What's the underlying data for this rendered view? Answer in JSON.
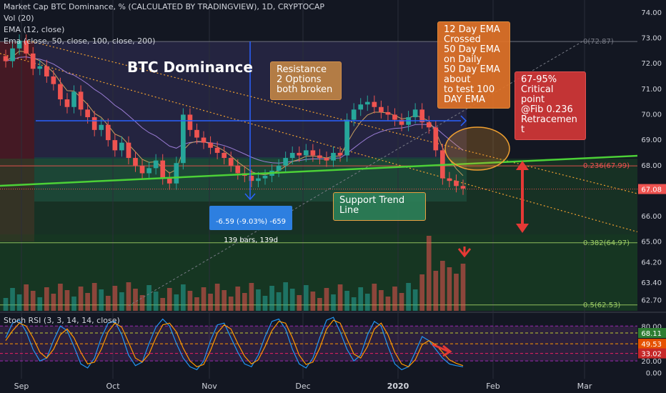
{
  "header": {
    "title": "Market Cap BTC Dominance, % (CALCULATED BY TRADINGVIEW), 1D, CRYPTOCAP",
    "vol": "Vol (20)",
    "ema12": "EMA (12, close)",
    "ema_multi": "Ema (close, 50, close, 100, close, 200)"
  },
  "colors": {
    "background": "#131722",
    "up": "#26a69a",
    "down": "#ef5350",
    "trend_green": "#4cd137",
    "ema_blue": "#2962ff",
    "rsi_k": "#2196f3",
    "rsi_d": "#ff9800"
  },
  "annotations": {
    "big_title": "BTC Dominance",
    "resistance_note": "Resistance\n2 Options\nboth broken",
    "ema_note": "12 Day EMA\nCrossed\n50 Day EMA\non Daily\n50 Day EMA\nabout\n to test 100\nDAY EMA",
    "critical_note": "67-95%\nCritical\npoint\n@Fib 0.236\nRetracemen\nt",
    "support_note": "Support Trend\nLine",
    "measure_line1": "-6.59 (-9.03%) -659",
    "measure_line2": "139 bars, 139d"
  },
  "chart_data": [
    {
      "type": "candlestick",
      "title": "Market Cap BTC Dominance, % (CALCULATED BY TRADINGVIEW), 1D, CRYPTOCAP",
      "x_ticks": [
        "Sep",
        "Oct",
        "Nov",
        "Dec",
        "2020",
        "Feb",
        "Mar"
      ],
      "y_ticks": [
        "74.00",
        "73.00",
        "72.00",
        "71.00",
        "70.00",
        "69.00",
        "68.00",
        "67.00",
        "66.00",
        "65.00",
        "64.20",
        "63.40",
        "62.70"
      ],
      "ylim": [
        62.3,
        74.5
      ],
      "last_price": "67.08",
      "fib_levels": [
        {
          "label": "0(72.87)",
          "value": 72.87
        },
        {
          "label": "0.236(67.99)",
          "value": 67.99
        },
        {
          "label": "0.382(64.97)",
          "value": 64.97
        },
        {
          "label": "0.5(62.53)",
          "value": 62.53
        }
      ],
      "close_series": [
        72.1,
        72.6,
        72.9,
        72.4,
        71.8,
        71.9,
        71.5,
        71.2,
        70.6,
        70.3,
        70.9,
        70.2,
        69.9,
        69.4,
        69.6,
        69.0,
        68.6,
        68.9,
        68.3,
        68.0,
        67.7,
        67.9,
        68.2,
        67.5,
        67.3,
        68.1,
        70.0,
        69.4,
        69.1,
        68.9,
        68.7,
        68.5,
        68.3,
        68.0,
        67.7,
        67.6,
        67.4,
        67.5,
        67.6,
        67.8,
        68.0,
        68.3,
        68.5,
        68.4,
        68.6,
        68.4,
        68.3,
        68.2,
        68.5,
        68.4,
        69.8,
        70.2,
        70.4,
        70.5,
        70.3,
        70.1,
        70.0,
        69.8,
        69.6,
        69.9,
        70.2,
        69.7,
        69.5,
        68.6,
        67.5,
        67.4,
        67.2,
        67.1
      ]
    },
    {
      "type": "line",
      "title": "Stoch RSI (3, 3, 14, 14, close)",
      "y_ticks": [
        "80.00",
        "68.11",
        "49.53",
        "33.02",
        "20.00",
        "0.00"
      ],
      "ylim": [
        -8,
        100
      ],
      "series": [
        {
          "name": "%K",
          "values": [
            60,
            85,
            90,
            70,
            40,
            20,
            25,
            55,
            80,
            72,
            45,
            15,
            8,
            25,
            60,
            85,
            88,
            65,
            30,
            12,
            18,
            50,
            78,
            92,
            80,
            50,
            25,
            10,
            5,
            20,
            55,
            82,
            85,
            60,
            35,
            15,
            10,
            30,
            62,
            88,
            92,
            75,
            40,
            15,
            8,
            25,
            60,
            90,
            95,
            70,
            40,
            20,
            30,
            65,
            88,
            80,
            45,
            15,
            5,
            10,
            35,
            62,
            55,
            40,
            25,
            15,
            12,
            10
          ]
        },
        {
          "name": "%D",
          "values": [
            55,
            72,
            85,
            80,
            60,
            35,
            25,
            40,
            65,
            75,
            60,
            35,
            15,
            18,
            40,
            70,
            85,
            78,
            52,
            25,
            18,
            32,
            60,
            82,
            85,
            70,
            42,
            20,
            10,
            14,
            38,
            68,
            82,
            75,
            50,
            28,
            15,
            22,
            45,
            72,
            88,
            85,
            60,
            30,
            14,
            18,
            42,
            75,
            90,
            85,
            58,
            32,
            25,
            45,
            75,
            85,
            65,
            35,
            15,
            10,
            22,
            48,
            55,
            48,
            35,
            22,
            16,
            12
          ]
        }
      ]
    }
  ]
}
